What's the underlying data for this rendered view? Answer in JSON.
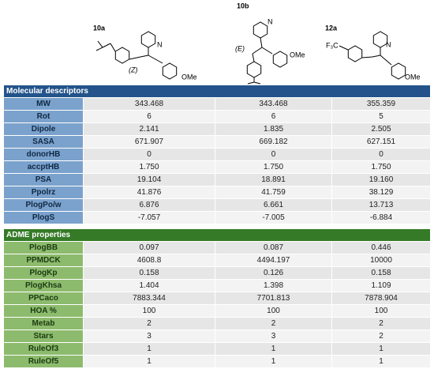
{
  "compounds": [
    {
      "id": "10a",
      "stereo": "(Z)",
      "substituent": "OMe",
      "heteroatom": "N"
    },
    {
      "id": "10b",
      "stereo": "(E)",
      "substituent": "OMe",
      "heteroatom": "N"
    },
    {
      "id": "12a",
      "group": "F₃C",
      "substituent": "OMe",
      "heteroatom": "N"
    }
  ],
  "sections": [
    {
      "title": "Molecular descriptors",
      "rows": [
        [
          "MW",
          "343.468",
          "343.468",
          "355.359"
        ],
        [
          "Rot",
          "6",
          "6",
          "5"
        ],
        [
          "Dipole",
          "2.141",
          "1.835",
          "2.505"
        ],
        [
          "SASA",
          "671.907",
          "669.182",
          "627.151"
        ],
        [
          "donorHB",
          "0",
          "0",
          "0"
        ],
        [
          "accptHB",
          "1.750",
          "1.750",
          "1.750"
        ],
        [
          "PSA",
          "19.104",
          "18.891",
          "19.160"
        ],
        [
          "Ppolrz",
          "41.876",
          "41.759",
          "38.129"
        ],
        [
          "PlogPo/w",
          "6.876",
          "6.661",
          "13.713"
        ],
        [
          "PlogS",
          "-7.057",
          "-7.005",
          "-6.884"
        ]
      ]
    },
    {
      "title": "ADME properties",
      "rows": [
        [
          "PlogBB",
          "0.097",
          "0.087",
          "0.446"
        ],
        [
          "PPMDCK",
          "4608.8",
          "4494.197",
          "10000"
        ],
        [
          "PlogKp",
          "0.158",
          "0.126",
          "0.158"
        ],
        [
          "PlogKhsa",
          "1.404",
          "1.398",
          "1.109"
        ],
        [
          "PPCaco",
          "7883.344",
          "7701.813",
          "7878.904"
        ],
        [
          "HOA %",
          "100",
          "100",
          "100"
        ],
        [
          "Metab",
          "2",
          "2",
          "2"
        ],
        [
          "Stars",
          "3",
          "3",
          "2"
        ],
        [
          "RuleOf3",
          "1",
          "1",
          "1"
        ],
        [
          "RuleOf5",
          "1",
          "1",
          "1"
        ]
      ]
    }
  ]
}
